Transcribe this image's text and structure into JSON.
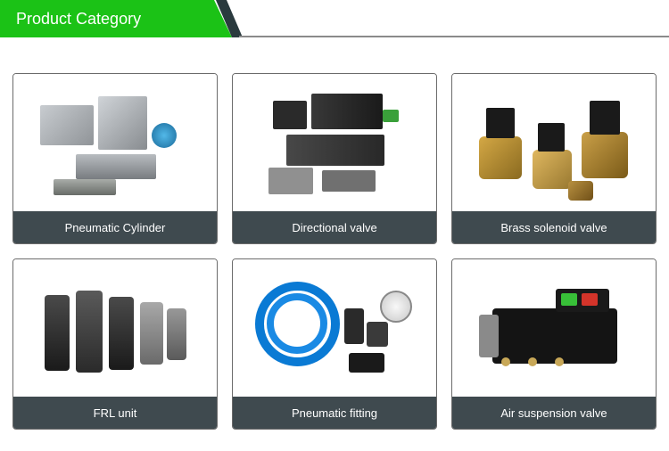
{
  "header": {
    "title": "Product Category",
    "accent_color": "#1bc216",
    "wedge_color": "#2a3a3e",
    "line_color": "#8a8a8a"
  },
  "cards": [
    {
      "label": "Pneumatic Cylinder"
    },
    {
      "label": "Directional valve"
    },
    {
      "label": "Brass solenoid valve"
    },
    {
      "label": "FRL unit"
    },
    {
      "label": "Pneumatic fitting"
    },
    {
      "label": "Air suspension valve"
    }
  ],
  "card_style": {
    "label_bg": "#3f4a4f",
    "label_color": "#ffffff",
    "border_color": "#6b6b6b"
  }
}
